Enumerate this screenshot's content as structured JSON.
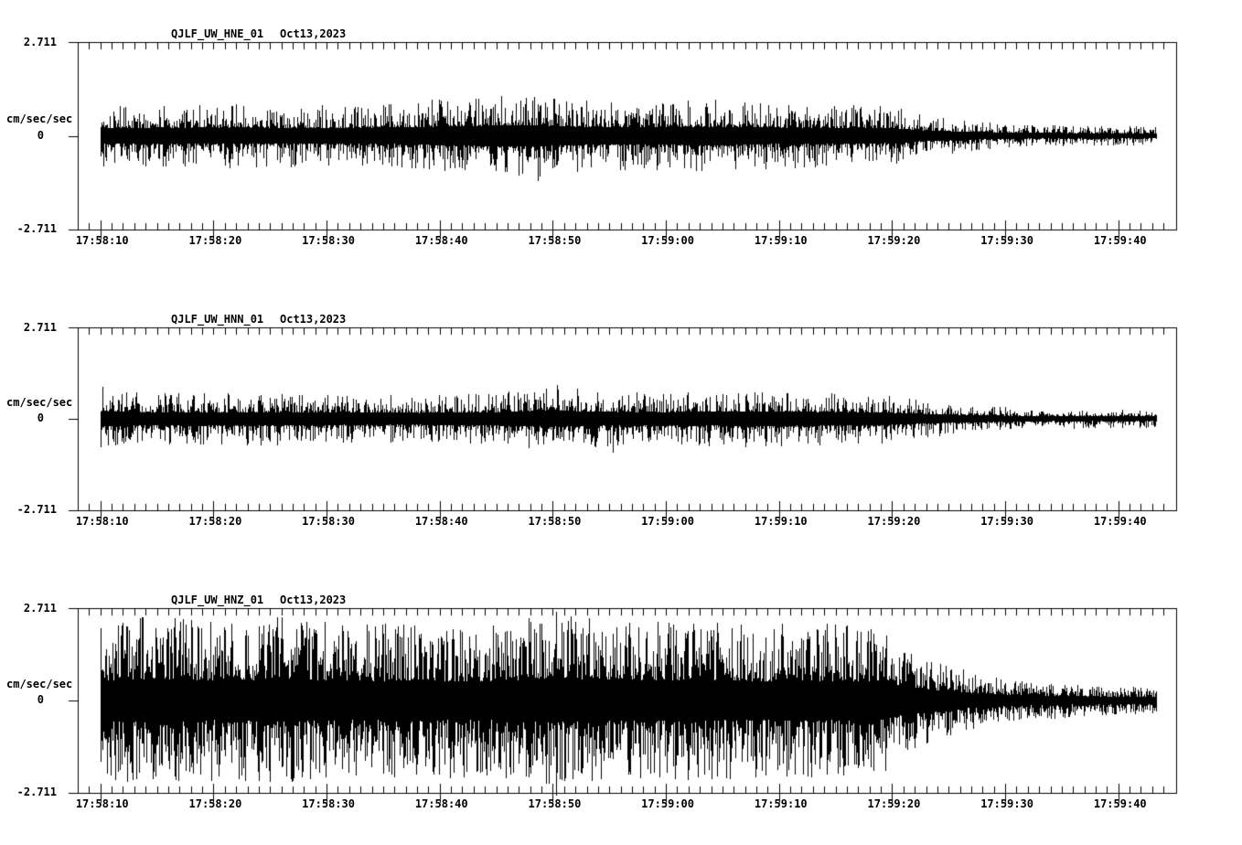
{
  "page": {
    "background": "#ffffff",
    "trace_color": "#000000"
  },
  "chart_data": [
    {
      "type": "line",
      "panel": "top",
      "station_id": "QJLF_UW_HNE_01",
      "date": "Oct13,2023",
      "ylabel": "cm/sec/sec",
      "yticks": [
        "2.711",
        "0",
        "-2.711"
      ],
      "ylim": [
        -2.711,
        2.711
      ],
      "xticklabels": [
        "17:58:10",
        "17:58:20",
        "17:58:30",
        "17:58:40",
        "17:58:50",
        "17:59:00",
        "17:59:10",
        "17:59:20",
        "17:59:30",
        "17:59:40"
      ],
      "x_major_interval_s": 10,
      "x_minor_interval_s": 1,
      "grid": false,
      "legend": "none",
      "envelope": {
        "t": [
          2,
          6,
          14,
          22,
          30,
          36,
          40,
          44,
          50,
          56,
          62,
          68,
          72,
          75,
          79,
          83,
          88,
          95
        ],
        "amp": [
          0.95,
          0.9,
          0.95,
          0.9,
          1.0,
          1.15,
          1.2,
          1.05,
          1.0,
          1.05,
          0.95,
          0.9,
          0.85,
          0.6,
          0.45,
          0.35,
          0.3,
          0.27
        ]
      },
      "spikes": [
        {
          "t": 40.7,
          "max": 0.9,
          "min": -1.3
        }
      ]
    },
    {
      "type": "line",
      "panel": "middle",
      "station_id": "QJLF_UW_HNN_01",
      "date": "Oct13,2023",
      "ylabel": "cm/sec/sec",
      "yticks": [
        "2.711",
        "0",
        "-2.711"
      ],
      "ylim": [
        -2.711,
        2.711
      ],
      "xticklabels": [
        "17:58:10",
        "17:58:20",
        "17:58:30",
        "17:58:40",
        "17:58:50",
        "17:59:00",
        "17:59:10",
        "17:59:20",
        "17:59:30",
        "17:59:40"
      ],
      "x_major_interval_s": 10,
      "x_minor_interval_s": 1,
      "grid": false,
      "legend": "none",
      "envelope": {
        "t": [
          2,
          6,
          14,
          22,
          30,
          36,
          42,
          48,
          54,
          60,
          66,
          71,
          74,
          78,
          83,
          88,
          95
        ],
        "amp": [
          0.9,
          0.75,
          0.8,
          0.75,
          0.7,
          0.75,
          0.95,
          0.8,
          0.8,
          0.85,
          0.8,
          0.75,
          0.6,
          0.45,
          0.33,
          0.3,
          0.28
        ]
      },
      "spikes": [
        {
          "t": 2.15,
          "max": 0.95,
          "min": -0.25
        },
        {
          "t": 42.4,
          "max": 1.0,
          "min": -0.5
        },
        {
          "t": 47.3,
          "max": 0.5,
          "min": -1.0
        }
      ]
    },
    {
      "type": "line",
      "panel": "bottom",
      "station_id": "QJLF_UW_HNZ_01",
      "date": "Oct13,2023",
      "ylabel": "cm/sec/sec",
      "yticks": [
        "2.711",
        "0",
        "-2.711"
      ],
      "ylim": [
        -2.711,
        2.711
      ],
      "xticklabels": [
        "17:58:10",
        "17:58:20",
        "17:58:30",
        "17:58:40",
        "17:58:50",
        "17:59:00",
        "17:59:10",
        "17:59:20",
        "17:59:30",
        "17:59:40"
      ],
      "x_major_interval_s": 10,
      "x_minor_interval_s": 1,
      "grid": false,
      "legend": "none",
      "envelope": {
        "t": [
          2,
          6,
          12,
          18,
          24,
          30,
          36,
          42,
          48,
          54,
          60,
          64,
          68,
          71,
          73,
          76,
          80,
          85,
          90,
          95
        ],
        "amp": [
          2.3,
          2.5,
          2.35,
          2.45,
          2.25,
          2.35,
          2.2,
          2.55,
          2.3,
          2.4,
          2.25,
          2.3,
          2.25,
          2.2,
          1.7,
          1.15,
          0.75,
          0.55,
          0.45,
          0.4
        ]
      },
      "spikes": [
        {
          "t": 42.3,
          "max": 2.6,
          "min": -2.78
        }
      ]
    }
  ]
}
